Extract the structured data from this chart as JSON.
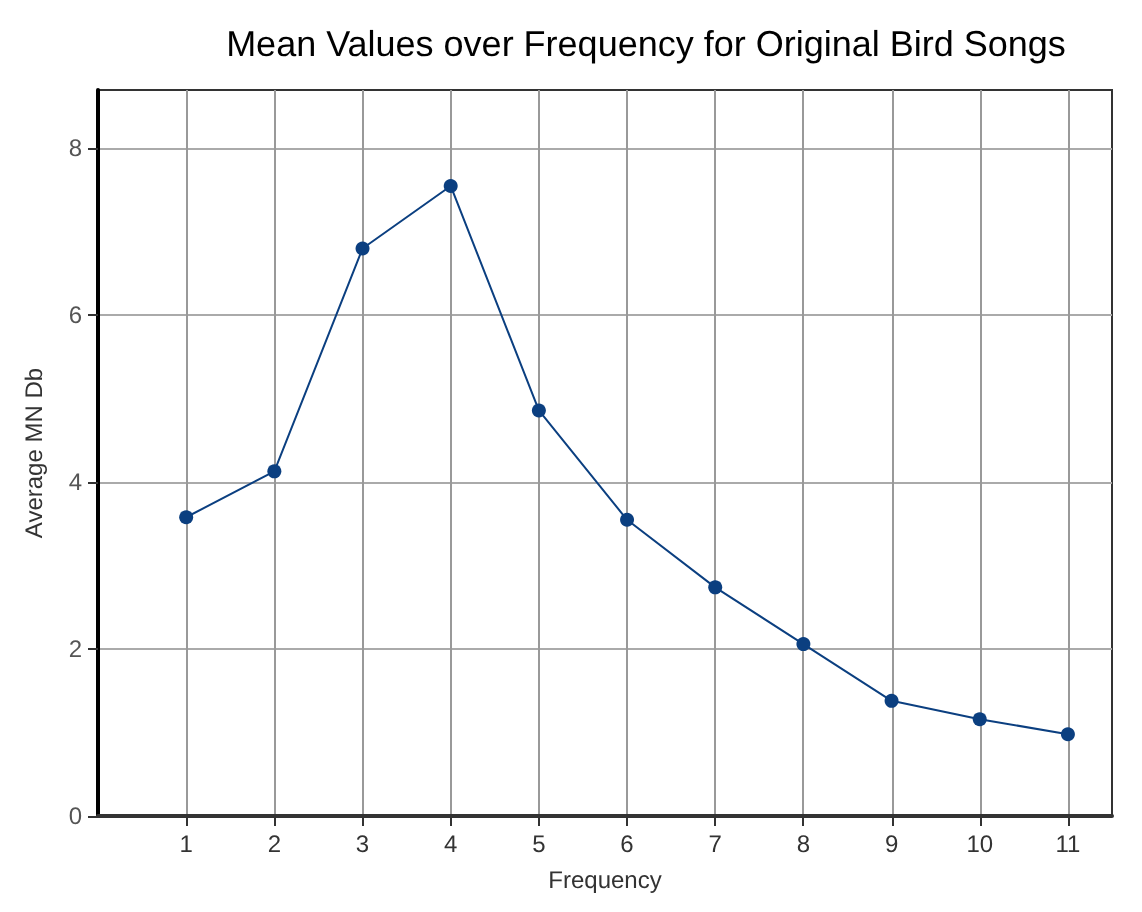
{
  "chart_data": {
    "type": "line",
    "title": "Mean Values over Frequency for Original Bird Songs",
    "xlabel": "Frequency",
    "ylabel": "Average MN Db",
    "x": [
      1,
      2,
      3,
      4,
      5,
      6,
      7,
      8,
      9,
      10,
      11
    ],
    "series": [
      {
        "color": "#0b3f80",
        "values": [
          3.58,
          4.13,
          6.8,
          7.55,
          4.86,
          3.55,
          2.74,
          2.06,
          1.38,
          1.16,
          0.98
        ]
      }
    ],
    "xlim": [
      0,
      11.5
    ],
    "xticks": [
      1,
      2,
      3,
      4,
      5,
      6,
      7,
      8,
      9,
      10,
      11
    ],
    "ylim": [
      0,
      8.7
    ],
    "yticks": [
      0,
      2,
      4,
      6,
      8
    ],
    "grid": true,
    "marker": "circle",
    "line_style": "solid"
  }
}
